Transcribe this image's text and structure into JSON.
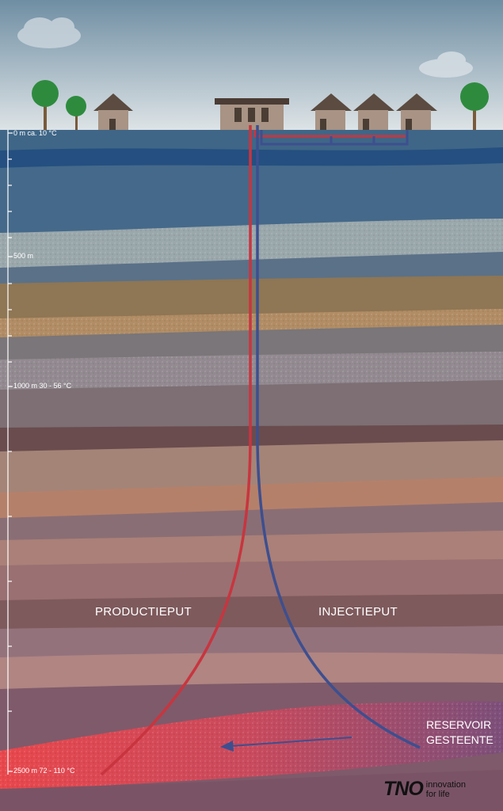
{
  "depth_scale": {
    "labels": [
      {
        "id": "surface",
        "text": "0 m ca. 10 °C"
      },
      {
        "id": "m500",
        "text": "500 m"
      },
      {
        "id": "m1000",
        "text": "1000 m 30 - 56 °C"
      },
      {
        "id": "m2500",
        "text": "2500 m 72 - 110 °C"
      }
    ]
  },
  "wells": {
    "production_label": "PRODUCTIEPUT",
    "injection_label": "INJECTIEPUT",
    "production_color": "#c8353f",
    "injection_color": "#3d4f8f"
  },
  "reservoir": {
    "label_line1": "RESERVOIR",
    "label_line2": "GESTEENTE"
  },
  "logo": {
    "brand": "TNO",
    "tagline_line1": "innovation",
    "tagline_line2": "for life"
  },
  "colors": {
    "sky_top": "#6f8ea3",
    "sky_bottom": "#dde3e6",
    "reservoir_hot": "#e0434a"
  }
}
